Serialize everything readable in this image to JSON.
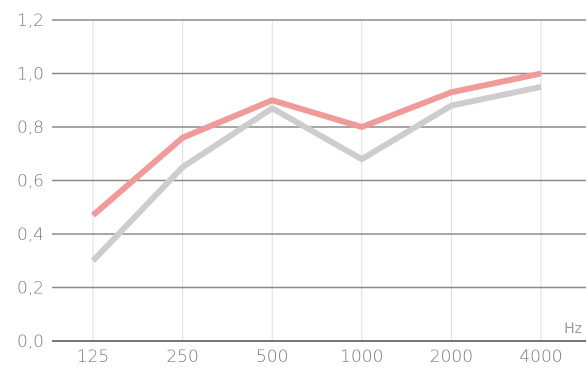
{
  "chart_data": {
    "type": "line",
    "categories": [
      "125",
      "250",
      "500",
      "1000",
      "2000",
      "4000"
    ],
    "series": [
      {
        "values": [
          0.47,
          0.76,
          0.9,
          0.8,
          0.93,
          1.0
        ],
        "color": "#f09a9a"
      },
      {
        "values": [
          0.3,
          0.65,
          0.87,
          0.68,
          0.88,
          0.95
        ],
        "color": "#cdcdcd"
      }
    ],
    "ylim": [
      0.0,
      1.2
    ],
    "yticks": [
      "0,0",
      "0,2",
      "0,4",
      "0,6",
      "0,8",
      "1,0",
      "1,2"
    ],
    "unit_label": "Hz",
    "grid": true,
    "title": "",
    "xlabel": "",
    "ylabel": ""
  }
}
